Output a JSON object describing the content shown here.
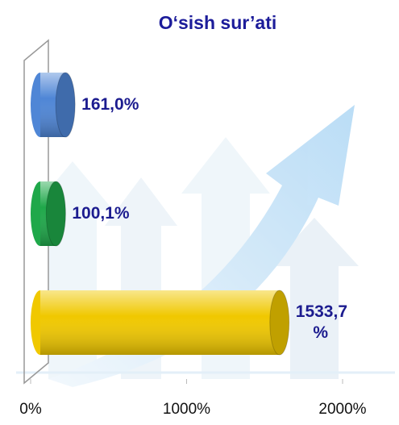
{
  "chart_data": {
    "type": "bar",
    "orientation": "horizontal",
    "title": "O‘sish sur’ati",
    "categories": [
      null,
      null,
      null
    ],
    "values": [
      161.0,
      100.1,
      1533.7
    ],
    "value_labels": [
      "161,0%",
      "100,1%",
      "1533,7 %"
    ],
    "colors": [
      "#4f86d6",
      "#1fa84a",
      "#f0c800"
    ],
    "xlim": [
      0,
      2000
    ],
    "xticks": [
      {
        "value": 0,
        "label": "0%"
      },
      {
        "value": 1000,
        "label": "1000%"
      },
      {
        "value": 2000,
        "label": "2000%"
      }
    ]
  }
}
